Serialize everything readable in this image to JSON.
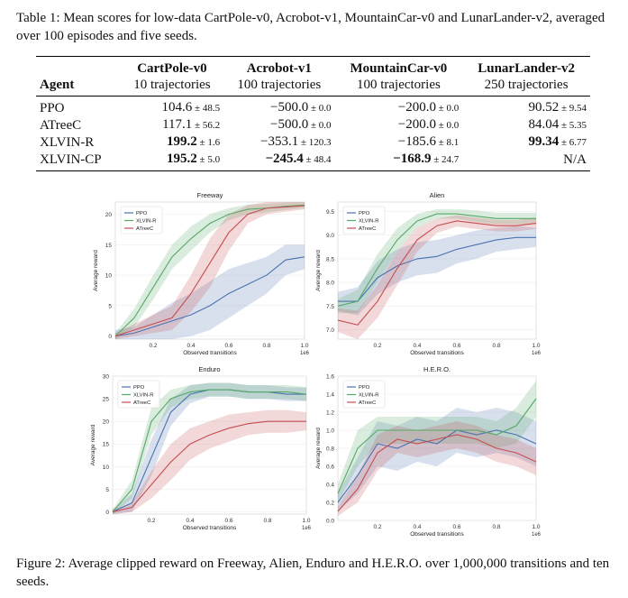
{
  "table": {
    "caption": "Table 1: Mean scores for low-data CartPole-v0, Acrobot-v1, MountainCar-v0 and LunarLander-v2, averaged over 100 episodes and five seeds.",
    "agent_header": "Agent",
    "env_headers": [
      "CartPole-v0",
      "Acrobot-v1",
      "MountainCar-v0",
      "LunarLander-v2"
    ],
    "traj_headers": [
      "10 trajectories",
      "100 trajectories",
      "100 trajectories",
      "250 trajectories"
    ],
    "rows": [
      {
        "agent": "PPO",
        "cells": [
          {
            "v": "104.6",
            "pm": "± 48.5",
            "b": false
          },
          {
            "v": "−500.0",
            "pm": "± 0.0",
            "b": false
          },
          {
            "v": "−200.0",
            "pm": "± 0.0",
            "b": false
          },
          {
            "v": "90.52",
            "pm": "± 9.54",
            "b": false
          }
        ]
      },
      {
        "agent": "ATreeC",
        "cells": [
          {
            "v": "117.1",
            "pm": "± 56.2",
            "b": false
          },
          {
            "v": "−500.0",
            "pm": "± 0.0",
            "b": false
          },
          {
            "v": "−200.0",
            "pm": "± 0.0",
            "b": false
          },
          {
            "v": "84.04",
            "pm": "± 5.35",
            "b": false
          }
        ]
      },
      {
        "agent": "XLVIN-R",
        "cells": [
          {
            "v": "199.2",
            "pm": "± 1.6",
            "b": true
          },
          {
            "v": "−353.1",
            "pm": "± 120.3",
            "b": false
          },
          {
            "v": "−185.6",
            "pm": "± 8.1",
            "b": false
          },
          {
            "v": "99.34",
            "pm": "± 6.77",
            "b": true
          }
        ]
      },
      {
        "agent": "XLVIN-CP",
        "cells": [
          {
            "v": "195.2",
            "pm": "± 5.0",
            "b": true
          },
          {
            "v": "−245.4",
            "pm": "± 48.4",
            "b": true
          },
          {
            "v": "−168.9",
            "pm": "± 24.7",
            "b": true
          },
          {
            "v": "N/A",
            "pm": "",
            "b": false
          }
        ]
      }
    ]
  },
  "figure_caption": "Figure 2: Average clipped reward on Freeway, Alien, Enduro and H.E.R.O. over 1,000,000 transitions and ten seeds.",
  "chart_data": [
    {
      "type": "line",
      "title": "Freeway",
      "xlabel": "Observed transitions",
      "ylabel": "Average reward",
      "x_tick_labels": [
        "0.2",
        "0.4",
        "0.6",
        "0.8",
        "1.0"
      ],
      "x_scale_label": "1e6",
      "xlim": [
        0,
        1000000
      ],
      "ylim": [
        -0.5,
        22
      ],
      "y_ticks": [
        0,
        5,
        10,
        15,
        20
      ],
      "x": [
        0,
        100000,
        200000,
        300000,
        400000,
        500000,
        600000,
        700000,
        800000,
        900000,
        1000000
      ],
      "legend_position": "upper-left",
      "series": [
        {
          "name": "PPO",
          "color": "#4c72b0",
          "values": [
            0,
            0.5,
            1.5,
            2.5,
            3.5,
            5,
            7,
            8.5,
            10,
            12.5,
            13
          ],
          "band": [
            1,
            1,
            2,
            3,
            3.5,
            4,
            4,
            3.5,
            3,
            2.5,
            2
          ]
        },
        {
          "name": "XLVIN-R",
          "color": "#55a868",
          "values": [
            0,
            3,
            8,
            13,
            16,
            18.5,
            20,
            20.8,
            21,
            21.3,
            21.5
          ],
          "band": [
            0.5,
            1.5,
            2,
            2,
            2,
            1.5,
            1,
            0.8,
            0.7,
            0.6,
            0.5
          ]
        },
        {
          "name": "ATreeC",
          "color": "#c44e52",
          "values": [
            0,
            1,
            2,
            3,
            7,
            12,
            17,
            20,
            21,
            21.2,
            21.4
          ],
          "band": [
            0.5,
            1,
            1.5,
            2,
            3,
            4,
            3,
            1.5,
            1,
            0.8,
            0.6
          ]
        }
      ]
    },
    {
      "type": "line",
      "title": "Alien",
      "xlabel": "Observed transitions",
      "ylabel": "Average reward",
      "x_tick_labels": [
        "0.2",
        "0.4",
        "0.6",
        "0.8",
        "1.0"
      ],
      "x_scale_label": "1e6",
      "xlim": [
        0,
        1000000
      ],
      "ylim": [
        6.8,
        9.7
      ],
      "y_ticks": [
        7.0,
        7.5,
        8.0,
        8.5,
        9.0,
        9.5
      ],
      "x": [
        0,
        100000,
        200000,
        300000,
        400000,
        500000,
        600000,
        700000,
        800000,
        900000,
        1000000
      ],
      "legend_position": "upper-left",
      "series": [
        {
          "name": "PPO",
          "color": "#4c72b0",
          "values": [
            7.6,
            7.6,
            8.1,
            8.35,
            8.5,
            8.55,
            8.7,
            8.8,
            8.9,
            8.95,
            8.95
          ],
          "band": [
            0.2,
            0.3,
            0.35,
            0.35,
            0.35,
            0.35,
            0.3,
            0.3,
            0.25,
            0.25,
            0.2
          ]
        },
        {
          "name": "XLVIN-R",
          "color": "#55a868",
          "values": [
            7.5,
            7.6,
            8.3,
            8.9,
            9.3,
            9.45,
            9.45,
            9.4,
            9.35,
            9.35,
            9.35
          ],
          "band": [
            0.15,
            0.25,
            0.3,
            0.25,
            0.15,
            0.1,
            0.1,
            0.12,
            0.12,
            0.12,
            0.12
          ]
        },
        {
          "name": "ATreeC",
          "color": "#c44e52",
          "values": [
            7.2,
            7.1,
            7.6,
            8.3,
            8.9,
            9.2,
            9.3,
            9.25,
            9.2,
            9.2,
            9.25
          ],
          "band": [
            0.25,
            0.3,
            0.35,
            0.35,
            0.25,
            0.15,
            0.12,
            0.12,
            0.12,
            0.12,
            0.12
          ]
        }
      ]
    },
    {
      "type": "line",
      "title": "Enduro",
      "xlabel": "Observed transitions",
      "ylabel": "Average reward",
      "x_tick_labels": [
        "0.2",
        "0.4",
        "0.6",
        "0.8",
        "1.0"
      ],
      "x_scale_label": "1e6",
      "xlim": [
        0,
        1000000
      ],
      "ylim": [
        -0.5,
        30
      ],
      "y_ticks": [
        0,
        5,
        10,
        15,
        20,
        25,
        30
      ],
      "x": [
        0,
        100000,
        200000,
        300000,
        400000,
        500000,
        600000,
        700000,
        800000,
        900000,
        1000000
      ],
      "legend_position": "upper-left",
      "series": [
        {
          "name": "PPO",
          "color": "#4c72b0",
          "values": [
            0,
            2,
            12,
            22,
            26,
            27,
            27,
            26.5,
            26.5,
            26,
            26
          ],
          "band": [
            0.5,
            2,
            4,
            3,
            2,
            1.5,
            1.5,
            1.5,
            1.5,
            1.5,
            1.5
          ]
        },
        {
          "name": "XLVIN-R",
          "color": "#55a868",
          "values": [
            0,
            5,
            20,
            25,
            26.5,
            27,
            27,
            26.5,
            26.5,
            26.5,
            26
          ],
          "band": [
            0.5,
            2,
            3,
            2,
            1.5,
            1.5,
            1.5,
            1.5,
            1.5,
            1.5,
            1.5
          ]
        },
        {
          "name": "ATreeC",
          "color": "#c44e52",
          "values": [
            0,
            1,
            6,
            11,
            15,
            17,
            18.5,
            19.5,
            20,
            20,
            20
          ],
          "band": [
            0.5,
            1,
            3,
            4,
            3.5,
            3,
            3,
            2.5,
            2.5,
            2.5,
            2
          ]
        }
      ]
    },
    {
      "type": "line",
      "title": "H.E.R.O.",
      "xlabel": "Observed transitions",
      "ylabel": "Average reward",
      "x_tick_labels": [
        "0.2",
        "0.4",
        "0.6",
        "0.8",
        "1.0"
      ],
      "x_scale_label": "1e6",
      "xlim": [
        0,
        1000000
      ],
      "ylim": [
        0,
        1.6
      ],
      "y_ticks": [
        0.0,
        0.2,
        0.4,
        0.6,
        0.8,
        1.0,
        1.2,
        1.4,
        1.6
      ],
      "x": [
        0,
        100000,
        200000,
        300000,
        400000,
        500000,
        600000,
        700000,
        800000,
        900000,
        1000000
      ],
      "legend_position": "upper-left",
      "series": [
        {
          "name": "PPO",
          "color": "#4c72b0",
          "values": [
            0.2,
            0.5,
            0.85,
            0.8,
            0.9,
            0.85,
            1.0,
            0.95,
            1.0,
            0.95,
            0.85
          ],
          "band": [
            0.1,
            0.2,
            0.25,
            0.25,
            0.25,
            0.25,
            0.25,
            0.25,
            0.25,
            0.25,
            0.25
          ]
        },
        {
          "name": "XLVIN-R",
          "color": "#55a868",
          "values": [
            0.3,
            0.8,
            1.0,
            1.0,
            1.0,
            1.0,
            1.0,
            1.0,
            0.95,
            1.05,
            1.35
          ],
          "band": [
            0.1,
            0.2,
            0.15,
            0.15,
            0.15,
            0.15,
            0.15,
            0.15,
            0.15,
            0.2,
            0.2
          ]
        },
        {
          "name": "ATreeC",
          "color": "#c44e52",
          "values": [
            0.1,
            0.35,
            0.75,
            0.9,
            0.85,
            0.9,
            0.95,
            0.9,
            0.8,
            0.75,
            0.65
          ],
          "band": [
            0.05,
            0.15,
            0.2,
            0.15,
            0.15,
            0.15,
            0.15,
            0.15,
            0.15,
            0.15,
            0.15
          ]
        }
      ]
    }
  ]
}
